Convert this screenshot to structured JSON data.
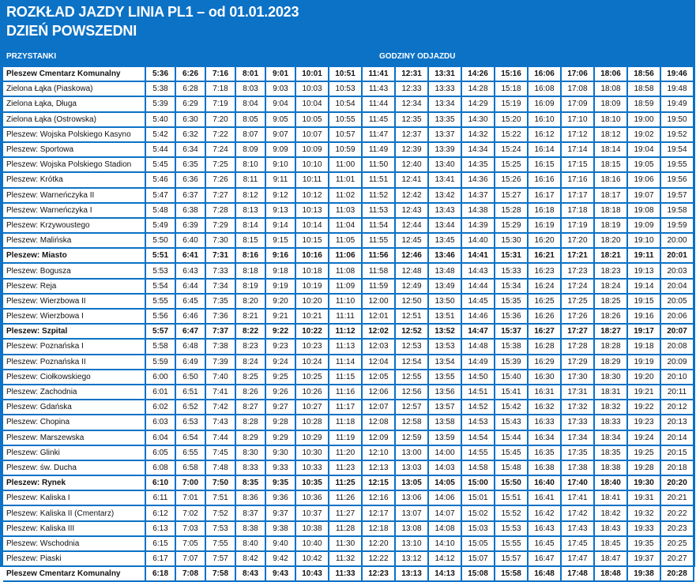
{
  "header": {
    "title": "ROZKŁAD JAZDY LINIA PL1 – od 01.01.2023",
    "subtitle": "DZIEŃ POWSZEDNI",
    "stops_label": "PRZYSTANKI",
    "times_label": "GODZINY ODJAZDU"
  },
  "colors": {
    "frame": "#0b72c6",
    "cell": "#ffffff",
    "text": "#111111"
  },
  "rows": [
    {
      "stop": "Pleszew Cmentarz Komunalny",
      "bold": true,
      "times": [
        "5:36",
        "6:26",
        "7:16",
        "8:01",
        "9:01",
        "10:01",
        "10:51",
        "11:41",
        "12:31",
        "13:31",
        "14:26",
        "15:16",
        "16:06",
        "17:06",
        "18:06",
        "18:56",
        "19:46"
      ]
    },
    {
      "stop": "Zielona Łąka (Piaskowa)",
      "bold": false,
      "times": [
        "5:38",
        "6:28",
        "7:18",
        "8:03",
        "9:03",
        "10:03",
        "10:53",
        "11:43",
        "12:33",
        "13:33",
        "14:28",
        "15:18",
        "16:08",
        "17:08",
        "18:08",
        "18:58",
        "19:48"
      ]
    },
    {
      "stop": "Zielona Łąka, Długa",
      "bold": false,
      "times": [
        "5:39",
        "6:29",
        "7:19",
        "8:04",
        "9:04",
        "10:04",
        "10:54",
        "11:44",
        "12:34",
        "13:34",
        "14:29",
        "15:19",
        "16:09",
        "17:09",
        "18:09",
        "18:59",
        "19:49"
      ]
    },
    {
      "stop": "Zielona Łąka (Ostrowska)",
      "bold": false,
      "times": [
        "5:40",
        "6:30",
        "7:20",
        "8:05",
        "9:05",
        "10:05",
        "10:55",
        "11:45",
        "12:35",
        "13:35",
        "14:30",
        "15:20",
        "16:10",
        "17:10",
        "18:10",
        "19:00",
        "19:50"
      ]
    },
    {
      "stop": "Pleszew: Wojska Polskiego Kasyno",
      "bold": false,
      "times": [
        "5:42",
        "6:32",
        "7:22",
        "8:07",
        "9:07",
        "10:07",
        "10:57",
        "11:47",
        "12:37",
        "13:37",
        "14:32",
        "15:22",
        "16:12",
        "17:12",
        "18:12",
        "19:02",
        "19:52"
      ]
    },
    {
      "stop": "Pleszew: Sportowa",
      "bold": false,
      "times": [
        "5:44",
        "6:34",
        "7:24",
        "8:09",
        "9:09",
        "10:09",
        "10:59",
        "11:49",
        "12:39",
        "13:39",
        "14:34",
        "15:24",
        "16:14",
        "17:14",
        "18:14",
        "19:04",
        "19:54"
      ]
    },
    {
      "stop": "Pleszew: Wojska Polskiego Stadion",
      "bold": false,
      "times": [
        "5:45",
        "6:35",
        "7:25",
        "8:10",
        "9:10",
        "10:10",
        "11:00",
        "11:50",
        "12:40",
        "13:40",
        "14:35",
        "15:25",
        "16:15",
        "17:15",
        "18:15",
        "19:05",
        "19:55"
      ]
    },
    {
      "stop": "Pleszew: Krótka",
      "bold": false,
      "times": [
        "5:46",
        "6:36",
        "7:26",
        "8:11",
        "9:11",
        "10:11",
        "11:01",
        "11:51",
        "12:41",
        "13:41",
        "14:36",
        "15:26",
        "16:16",
        "17:16",
        "18:16",
        "19:06",
        "19:56"
      ]
    },
    {
      "stop": "Pleszew: Warneńczyka II",
      "bold": false,
      "times": [
        "5:47",
        "6:37",
        "7:27",
        "8:12",
        "9:12",
        "10:12",
        "11:02",
        "11:52",
        "12:42",
        "13:42",
        "14:37",
        "15:27",
        "16:17",
        "17:17",
        "18:17",
        "19:07",
        "19:57"
      ]
    },
    {
      "stop": "Pleszew: Warneńczyka I",
      "bold": false,
      "times": [
        "5:48",
        "6:38",
        "7:28",
        "8:13",
        "9:13",
        "10:13",
        "11:03",
        "11:53",
        "12:43",
        "13:43",
        "14:38",
        "15:28",
        "16:18",
        "17:18",
        "18:18",
        "19:08",
        "19:58"
      ]
    },
    {
      "stop": "Pleszew: Krzywoustego",
      "bold": false,
      "times": [
        "5:49",
        "6:39",
        "7:29",
        "8:14",
        "9:14",
        "10:14",
        "11:04",
        "11:54",
        "12:44",
        "13:44",
        "14:39",
        "15:29",
        "16:19",
        "17:19",
        "18:19",
        "19:09",
        "19:59"
      ]
    },
    {
      "stop": "Pleszew: Malińska",
      "bold": false,
      "times": [
        "5:50",
        "6:40",
        "7:30",
        "8:15",
        "9:15",
        "10:15",
        "11:05",
        "11:55",
        "12:45",
        "13:45",
        "14:40",
        "15:30",
        "16:20",
        "17:20",
        "18:20",
        "19:10",
        "20:00"
      ]
    },
    {
      "stop": "Pleszew: Miasto",
      "bold": true,
      "times": [
        "5:51",
        "6:41",
        "7:31",
        "8:16",
        "9:16",
        "10:16",
        "11:06",
        "11:56",
        "12:46",
        "13:46",
        "14:41",
        "15:31",
        "16:21",
        "17:21",
        "18:21",
        "19:11",
        "20:01"
      ]
    },
    {
      "stop": "Pleszew: Bogusza",
      "bold": false,
      "times": [
        "5:53",
        "6:43",
        "7:33",
        "8:18",
        "9:18",
        "10:18",
        "11:08",
        "11:58",
        "12:48",
        "13:48",
        "14:43",
        "15:33",
        "16:23",
        "17:23",
        "18:23",
        "19:13",
        "20:03"
      ]
    },
    {
      "stop": "Pleszew: Reja",
      "bold": false,
      "times": [
        "5:54",
        "6:44",
        "7:34",
        "8:19",
        "9:19",
        "10:19",
        "11:09",
        "11:59",
        "12:49",
        "13:49",
        "14:44",
        "15:34",
        "16:24",
        "17:24",
        "18:24",
        "19:14",
        "20:04"
      ]
    },
    {
      "stop": "Pleszew: Wierzbowa II",
      "bold": false,
      "times": [
        "5:55",
        "6:45",
        "7:35",
        "8:20",
        "9:20",
        "10:20",
        "11:10",
        "12:00",
        "12:50",
        "13:50",
        "14:45",
        "15:35",
        "16:25",
        "17:25",
        "18:25",
        "19:15",
        "20:05"
      ]
    },
    {
      "stop": "Pleszew: Wierzbowa I",
      "bold": false,
      "times": [
        "5:56",
        "6:46",
        "7:36",
        "8:21",
        "9:21",
        "10:21",
        "11:11",
        "12:01",
        "12:51",
        "13:51",
        "14:46",
        "15:36",
        "16:26",
        "17:26",
        "18:26",
        "19:16",
        "20:06"
      ]
    },
    {
      "stop": "Pleszew: Szpital",
      "bold": true,
      "times": [
        "5:57",
        "6:47",
        "7:37",
        "8:22",
        "9:22",
        "10:22",
        "11:12",
        "12:02",
        "12:52",
        "13:52",
        "14:47",
        "15:37",
        "16:27",
        "17:27",
        "18:27",
        "19:17",
        "20:07"
      ]
    },
    {
      "stop": "Pleszew: Poznańska I",
      "bold": false,
      "times": [
        "5:58",
        "6:48",
        "7:38",
        "8:23",
        "9:23",
        "10:23",
        "11:13",
        "12:03",
        "12:53",
        "13:53",
        "14:48",
        "15:38",
        "16:28",
        "17:28",
        "18:28",
        "19:18",
        "20:08"
      ]
    },
    {
      "stop": "Pleszew: Poznańska II",
      "bold": false,
      "times": [
        "5:59",
        "6:49",
        "7:39",
        "8:24",
        "9:24",
        "10:24",
        "11:14",
        "12:04",
        "12:54",
        "13:54",
        "14:49",
        "15:39",
        "16:29",
        "17:29",
        "18:29",
        "19:19",
        "20:09"
      ]
    },
    {
      "stop": "Pleszew: Ciołkowskiego",
      "bold": false,
      "times": [
        "6:00",
        "6:50",
        "7:40",
        "8:25",
        "9:25",
        "10:25",
        "11:15",
        "12:05",
        "12:55",
        "13:55",
        "14:50",
        "15:40",
        "16:30",
        "17:30",
        "18:30",
        "19:20",
        "20:10"
      ]
    },
    {
      "stop": "Pleszew: Zachodnia",
      "bold": false,
      "times": [
        "6:01",
        "6:51",
        "7:41",
        "8:26",
        "9:26",
        "10:26",
        "11:16",
        "12:06",
        "12:56",
        "13:56",
        "14:51",
        "15:41",
        "16:31",
        "17:31",
        "18:31",
        "19:21",
        "20:11"
      ]
    },
    {
      "stop": "Pleszew: Gdańska",
      "bold": false,
      "times": [
        "6:02",
        "6:52",
        "7:42",
        "8:27",
        "9:27",
        "10:27",
        "11:17",
        "12:07",
        "12:57",
        "13:57",
        "14:52",
        "15:42",
        "16:32",
        "17:32",
        "18:32",
        "19:22",
        "20:12"
      ]
    },
    {
      "stop": "Pleszew: Chopina",
      "bold": false,
      "times": [
        "6:03",
        "6:53",
        "7:43",
        "8:28",
        "9:28",
        "10:28",
        "11:18",
        "12:08",
        "12:58",
        "13:58",
        "14:53",
        "15:43",
        "16:33",
        "17:33",
        "18:33",
        "19:23",
        "20:13"
      ]
    },
    {
      "stop": "Pleszew: Marszewska",
      "bold": false,
      "times": [
        "6:04",
        "6:54",
        "7:44",
        "8:29",
        "9:29",
        "10:29",
        "11:19",
        "12:09",
        "12:59",
        "13:59",
        "14:54",
        "15:44",
        "16:34",
        "17:34",
        "18:34",
        "19:24",
        "20:14"
      ]
    },
    {
      "stop": "Pleszew: Glinki",
      "bold": false,
      "times": [
        "6:05",
        "6:55",
        "7:45",
        "8:30",
        "9:30",
        "10:30",
        "11:20",
        "12:10",
        "13:00",
        "14:00",
        "14:55",
        "15:45",
        "16:35",
        "17:35",
        "18:35",
        "19:25",
        "20:15"
      ]
    },
    {
      "stop": "Pleszew: św. Ducha",
      "bold": false,
      "times": [
        "6:08",
        "6:58",
        "7:48",
        "8:33",
        "9:33",
        "10:33",
        "11:23",
        "12:13",
        "13:03",
        "14:03",
        "14:58",
        "15:48",
        "16:38",
        "17:38",
        "18:38",
        "19:28",
        "20:18"
      ]
    },
    {
      "stop": "Pleszew: Rynek",
      "bold": true,
      "times": [
        "6:10",
        "7:00",
        "7:50",
        "8:35",
        "9:35",
        "10:35",
        "11:25",
        "12:15",
        "13:05",
        "14:05",
        "15:00",
        "15:50",
        "16:40",
        "17:40",
        "18:40",
        "19:30",
        "20:20"
      ]
    },
    {
      "stop": "Pleszew: Kaliska I",
      "bold": false,
      "times": [
        "6:11",
        "7:01",
        "7:51",
        "8:36",
        "9:36",
        "10:36",
        "11:26",
        "12:16",
        "13:06",
        "14:06",
        "15:01",
        "15:51",
        "16:41",
        "17:41",
        "18:41",
        "19:31",
        "20:21"
      ]
    },
    {
      "stop": "Pleszew: Kaliska II (Cmentarz)",
      "bold": false,
      "times": [
        "6:12",
        "7:02",
        "7:52",
        "8:37",
        "9:37",
        "10:37",
        "11:27",
        "12:17",
        "13:07",
        "14:07",
        "15:02",
        "15:52",
        "16:42",
        "17:42",
        "18:42",
        "19:32",
        "20:22"
      ]
    },
    {
      "stop": "Pleszew: Kaliska III",
      "bold": false,
      "times": [
        "6:13",
        "7:03",
        "7:53",
        "8:38",
        "9:38",
        "10:38",
        "11:28",
        "12:18",
        "13:08",
        "14:08",
        "15:03",
        "15:53",
        "16:43",
        "17:43",
        "18:43",
        "19:33",
        "20:23"
      ]
    },
    {
      "stop": "Pleszew: Wschodnia",
      "bold": false,
      "times": [
        "6:15",
        "7:05",
        "7:55",
        "8:40",
        "9:40",
        "10:40",
        "11:30",
        "12:20",
        "13:10",
        "14:10",
        "15:05",
        "15:55",
        "16:45",
        "17:45",
        "18:45",
        "19:35",
        "20:25"
      ]
    },
    {
      "stop": "Pleszew: Piaski",
      "bold": false,
      "times": [
        "6:17",
        "7:07",
        "7:57",
        "8:42",
        "9:42",
        "10:42",
        "11:32",
        "12:22",
        "13:12",
        "14:12",
        "15:07",
        "15:57",
        "16:47",
        "17:47",
        "18:47",
        "19:37",
        "20:27"
      ]
    },
    {
      "stop": "Pleszew Cmentarz Komunalny",
      "bold": true,
      "times": [
        "6:18",
        "7:08",
        "7:58",
        "8:43",
        "9:43",
        "10:43",
        "11:33",
        "12:23",
        "13:13",
        "14:13",
        "15:08",
        "15:58",
        "16:48",
        "17:48",
        "18:48",
        "19:38",
        "20:28"
      ]
    }
  ]
}
